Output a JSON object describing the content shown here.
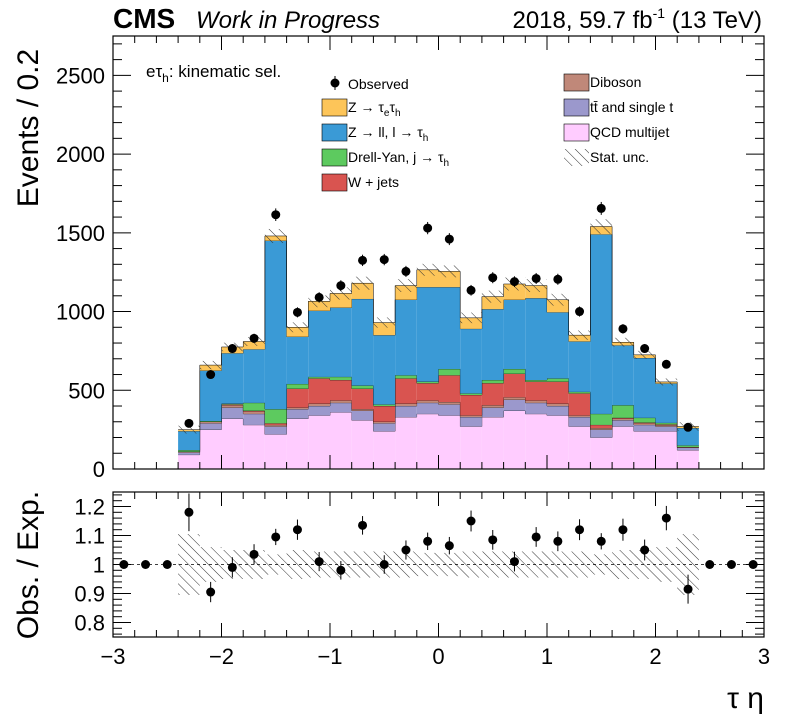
{
  "header": {
    "cms": "CMS",
    "wip": "Work in Progress",
    "lumi_prefix": "2018, 59.7 fb",
    "lumi_exp": "-1",
    "lumi_suffix": " (13 TeV)"
  },
  "annotation": {
    "main": "eτ",
    "sub": "h",
    "rest": ": kinematic sel."
  },
  "legend": {
    "observed": "Observed",
    "ztt_a": "Z → τ",
    "ztt_sub_e": "e",
    "ztt_b": "τ",
    "ztt_sub_h": "h",
    "zll_a": "Z → ll, l → τ",
    "zll_sub": "h",
    "dy_a": "Drell-Yan, j → τ",
    "dy_sub": "h",
    "wjets": "W + jets",
    "diboson": "Diboson",
    "ttbar": "tt̄ and single t",
    "qcd": "QCD multijet",
    "stat": "Stat. unc."
  },
  "colors": {
    "ztt": "#fdc559",
    "zll": "#3a9ad6",
    "dy": "#5dca5f",
    "wjets": "#d95450",
    "diboson": "#c08879",
    "ttbar": "#9b98cc",
    "qcd": "#ffccff"
  },
  "chart_data": [
    {
      "type": "bar",
      "stacked": true,
      "ylabel": "Events / 0.2",
      "xlim": [
        -3,
        3
      ],
      "ylim": [
        0,
        2750
      ],
      "yticks": [
        0,
        500,
        1000,
        1500,
        2000,
        2500
      ],
      "bin_edges": [
        -2.4,
        -2.2,
        -2.0,
        -1.8,
        -1.6,
        -1.4,
        -1.2,
        -1.0,
        -0.8,
        -0.6,
        -0.4,
        -0.2,
        0.0,
        0.2,
        0.4,
        0.6,
        0.8,
        1.0,
        1.2,
        1.4,
        1.6,
        1.8,
        2.0,
        2.2,
        2.4
      ],
      "series": [
        {
          "key": "qcd",
          "name": "QCD multijet",
          "values": [
            90,
            250,
            320,
            280,
            220,
            320,
            340,
            360,
            310,
            240,
            330,
            350,
            340,
            270,
            330,
            370,
            350,
            340,
            270,
            200,
            270,
            240,
            240,
            120
          ]
        },
        {
          "key": "ttbar",
          "name": "tt̄ and single t",
          "values": [
            15,
            40,
            70,
            70,
            50,
            60,
            60,
            60,
            60,
            50,
            70,
            70,
            70,
            60,
            60,
            70,
            70,
            60,
            60,
            50,
            40,
            40,
            30,
            15
          ]
        },
        {
          "key": "diboson",
          "name": "Diboson",
          "values": [
            5,
            10,
            15,
            15,
            10,
            10,
            15,
            15,
            10,
            10,
            15,
            15,
            15,
            10,
            15,
            15,
            15,
            15,
            10,
            10,
            10,
            10,
            8,
            5
          ]
        },
        {
          "key": "wjets",
          "name": "W + jets",
          "values": [
            0,
            0,
            5,
            5,
            10,
            120,
            160,
            130,
            130,
            100,
            160,
            110,
            170,
            130,
            140,
            150,
            120,
            140,
            140,
            20,
            5,
            5,
            5,
            0
          ]
        },
        {
          "key": "dy",
          "name": "Drell-Yan, j → τh",
          "values": [
            10,
            5,
            5,
            50,
            90,
            30,
            10,
            20,
            20,
            10,
            20,
            10,
            40,
            10,
            20,
            30,
            10,
            20,
            10,
            70,
            80,
            30,
            10,
            10
          ]
        },
        {
          "key": "zll",
          "name": "Z → ll, l → τh",
          "values": [
            120,
            320,
            320,
            340,
            1070,
            300,
            420,
            440,
            550,
            440,
            480,
            600,
            520,
            410,
            450,
            440,
            520,
            420,
            320,
            1140,
            380,
            380,
            250,
            110
          ]
        },
        {
          "key": "ztt",
          "name": "Z → τeτh",
          "values": [
            10,
            35,
            40,
            50,
            30,
            60,
            60,
            90,
            100,
            80,
            90,
            110,
            100,
            70,
            80,
            100,
            80,
            80,
            40,
            50,
            20,
            20,
            10,
            10
          ]
        }
      ],
      "observed": {
        "x": [
          -2.3,
          -2.1,
          -1.9,
          -1.7,
          -1.5,
          -1.3,
          -1.1,
          -0.9,
          -0.7,
          -0.5,
          -0.3,
          -0.1,
          0.1,
          0.3,
          0.5,
          0.7,
          0.9,
          1.1,
          1.3,
          1.5,
          1.7,
          1.9,
          2.1,
          2.3
        ],
        "y": [
          290,
          600,
          765,
          830,
          1615,
          995,
          1090,
          1165,
          1325,
          1330,
          1255,
          1530,
          1460,
          1135,
          1215,
          1190,
          1210,
          1205,
          1000,
          1655,
          890,
          765,
          665,
          265
        ],
        "yerr": [
          25,
          25,
          28,
          29,
          40,
          32,
          33,
          34,
          36,
          36,
          35,
          39,
          38,
          34,
          35,
          34,
          35,
          35,
          32,
          41,
          30,
          28,
          26,
          16
        ]
      },
      "stat_unc_frac": [
        0.1,
        0.04,
        0.035,
        0.035,
        0.03,
        0.035,
        0.035,
        0.035,
        0.035,
        0.035,
        0.035,
        0.03,
        0.03,
        0.035,
        0.035,
        0.035,
        0.035,
        0.035,
        0.035,
        0.03,
        0.035,
        0.035,
        0.04,
        0.1
      ]
    },
    {
      "type": "scatter",
      "xlabel": "τ η",
      "ylabel": "Obs. / Exp.",
      "xlim": [
        -3,
        3
      ],
      "ylim": [
        0.75,
        1.25
      ],
      "xticks": [
        -3,
        -2,
        -1,
        0,
        1,
        2,
        3
      ],
      "yticks": [
        0.8,
        0.9,
        1,
        1.1,
        1.2
      ],
      "ytick_labels": [
        "0.8",
        "0.9",
        "1",
        "1.1",
        "1.2"
      ],
      "x": [
        -2.9,
        -2.7,
        -2.5,
        -2.3,
        -2.1,
        -1.9,
        -1.7,
        -1.5,
        -1.3,
        -1.1,
        -0.9,
        -0.7,
        -0.5,
        -0.3,
        -0.1,
        0.1,
        0.3,
        0.5,
        0.7,
        0.9,
        1.1,
        1.3,
        1.5,
        1.7,
        1.9,
        2.1,
        2.3,
        2.5,
        2.7,
        2.9
      ],
      "y": [
        1.0,
        1.0,
        1.0,
        1.18,
        0.905,
        0.99,
        1.035,
        1.095,
        1.12,
        1.01,
        0.98,
        1.135,
        1.0,
        1.05,
        1.08,
        1.065,
        1.15,
        1.085,
        1.01,
        1.095,
        1.08,
        1.12,
        1.08,
        1.12,
        1.05,
        1.16,
        0.915,
        1.0,
        1.0,
        1.0
      ],
      "yerr": [
        0,
        0,
        0,
        0.065,
        0.035,
        0.035,
        0.035,
        0.028,
        0.035,
        0.033,
        0.032,
        0.032,
        0.032,
        0.033,
        0.03,
        0.03,
        0.036,
        0.034,
        0.034,
        0.034,
        0.034,
        0.036,
        0.028,
        0.038,
        0.036,
        0.042,
        0.05,
        0,
        0,
        0
      ],
      "band_edges": [
        -2.4,
        -2.2,
        -2.0,
        -1.8,
        -1.6,
        -1.4,
        -1.2,
        -1.0,
        -0.8,
        -0.6,
        -0.4,
        -0.2,
        0.0,
        0.2,
        0.4,
        0.6,
        0.8,
        1.0,
        1.2,
        1.4,
        1.6,
        1.8,
        2.0,
        2.2,
        2.4
      ],
      "band_halfwidth": [
        0.105,
        0.06,
        0.05,
        0.05,
        0.035,
        0.05,
        0.045,
        0.045,
        0.045,
        0.045,
        0.045,
        0.04,
        0.04,
        0.045,
        0.045,
        0.045,
        0.045,
        0.045,
        0.045,
        0.035,
        0.05,
        0.05,
        0.06,
        0.105
      ]
    }
  ]
}
